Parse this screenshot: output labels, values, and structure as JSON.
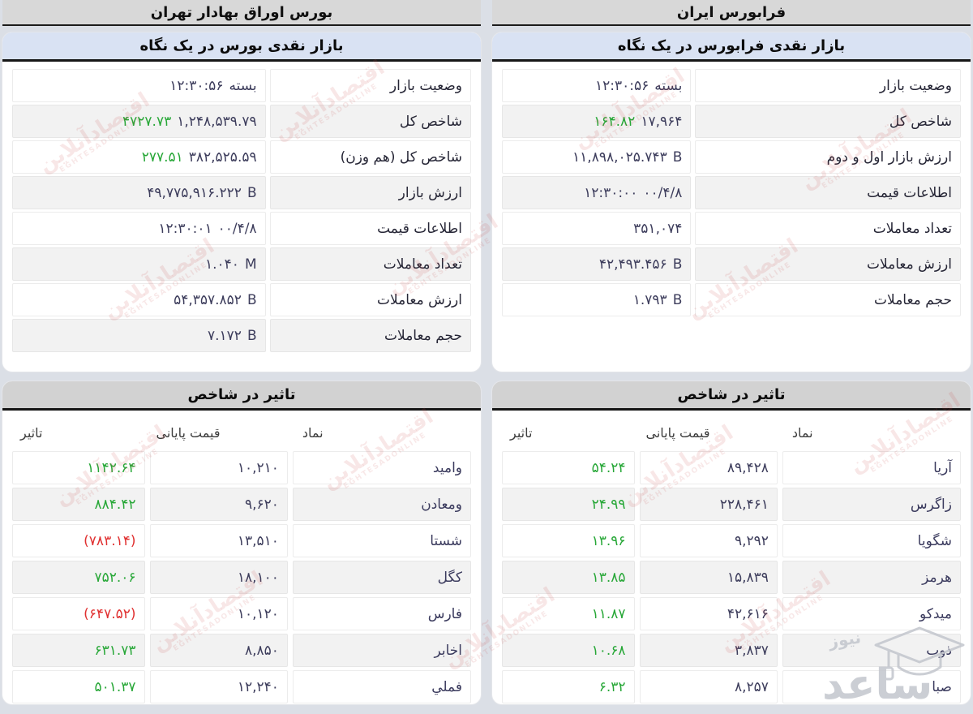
{
  "colors": {
    "up_green": "#27a737",
    "down_red": "#e03131",
    "value_dark": "#3d3d5c"
  },
  "watermark": {
    "site_text": "اقتصادآنلاین",
    "site_subtext": "EGHTESADONLINE",
    "corner_big": "ساعد",
    "corner_small": "نیوز"
  },
  "columns": [
    {
      "header": "بورس اوراق بهادار تهران",
      "glance": {
        "title": "بازار نقدی بورس در یک نگاه",
        "rows": [
          {
            "label": "وضعیت بازار",
            "segments": [
              {
                "text": "۱۲:۳۰:۵۶",
                "tone": "dark"
              },
              {
                "text": "بسته",
                "tone": "dark"
              }
            ]
          },
          {
            "label": "شاخص کل",
            "segments": [
              {
                "text": "۴۷۲۷.۷۳",
                "tone": "green"
              },
              {
                "text": "۱,۲۴۸,۵۳۹.۷۹",
                "tone": "dark"
              }
            ]
          },
          {
            "label": "شاخص کل (هم وزن)",
            "segments": [
              {
                "text": "۲۷۷.۵۱",
                "tone": "green"
              },
              {
                "text": "۳۸۲,۵۲۵.۵۹",
                "tone": "dark"
              }
            ]
          },
          {
            "label": "ارزش بازار",
            "segments": [
              {
                "text": "۴۹,۷۷۵,۹۱۶.۲۲۲",
                "tone": "dark"
              },
              {
                "text": "B",
                "tone": "dark"
              }
            ]
          },
          {
            "label": "اطلاعات قیمت",
            "segments": [
              {
                "text": "۱۲:۳۰:۰۱",
                "tone": "dark"
              },
              {
                "text": "۰۰/۴/۸",
                "tone": "dark"
              }
            ]
          },
          {
            "label": "تعداد معاملات",
            "segments": [
              {
                "text": "۱.۰۴۰",
                "tone": "dark"
              },
              {
                "text": "M",
                "tone": "dark"
              }
            ]
          },
          {
            "label": "ارزش معاملات",
            "segments": [
              {
                "text": "۵۴,۳۵۷.۸۵۲",
                "tone": "dark"
              },
              {
                "text": "B",
                "tone": "dark"
              }
            ]
          },
          {
            "label": "حجم معاملات",
            "segments": [
              {
                "text": "۷.۱۷۲",
                "tone": "dark"
              },
              {
                "text": "B",
                "tone": "dark"
              }
            ]
          }
        ]
      },
      "impact": {
        "title": "تاثیر در شاخص",
        "headers": {
          "symbol": "نماد",
          "close": "قیمت پایانی",
          "impact": "تاثیر"
        },
        "rows": [
          {
            "symbol": "وامید",
            "close": "۱۰,۲۱۰",
            "impact": "۱۱۴۲.۶۴",
            "dir": "up"
          },
          {
            "symbol": "ومعادن",
            "close": "۹,۶۲۰",
            "impact": "۸۸۴.۴۲",
            "dir": "up"
          },
          {
            "symbol": "شستا",
            "close": "۱۳,۵۱۰",
            "impact": "(۷۸۳.۱۴)",
            "dir": "down"
          },
          {
            "symbol": "کگل",
            "close": "۱۸,۱۰۰",
            "impact": "۷۵۲.۰۶",
            "dir": "up"
          },
          {
            "symbol": "فارس",
            "close": "۱۰,۱۲۰",
            "impact": "(۶۴۷.۵۲)",
            "dir": "down"
          },
          {
            "symbol": "اخابر",
            "close": "۸,۸۵۰",
            "impact": "۶۳۱.۷۳",
            "dir": "up"
          },
          {
            "symbol": "فملي",
            "close": "۱۲,۲۴۰",
            "impact": "۵۰۱.۳۷",
            "dir": "up"
          }
        ]
      }
    },
    {
      "header": "فرابورس ایران",
      "glance": {
        "title": "بازار نقدی فرابورس در یک نگاه",
        "rows": [
          {
            "label": "وضعیت بازار",
            "segments": [
              {
                "text": "۱۲:۳۰:۵۶",
                "tone": "dark"
              },
              {
                "text": "بسته",
                "tone": "dark"
              }
            ]
          },
          {
            "label": "شاخص کل",
            "segments": [
              {
                "text": "۱۶۴.۸۲",
                "tone": "green"
              },
              {
                "text": "۱۷,۹۶۴",
                "tone": "dark"
              }
            ]
          },
          {
            "label": "ارزش بازار اول و دوم",
            "segments": [
              {
                "text": "۱۱,۸۹۸,۰۲۵.۷۴۳",
                "tone": "dark"
              },
              {
                "text": "B",
                "tone": "dark"
              }
            ]
          },
          {
            "label": "اطلاعات قیمت",
            "segments": [
              {
                "text": "۱۲:۳۰:۰۰",
                "tone": "dark"
              },
              {
                "text": "۰۰/۴/۸",
                "tone": "dark"
              }
            ]
          },
          {
            "label": "تعداد معاملات",
            "segments": [
              {
                "text": "۳۵۱,۰۷۴",
                "tone": "dark"
              }
            ]
          },
          {
            "label": "ارزش معاملات",
            "segments": [
              {
                "text": "۴۲,۴۹۳.۴۵۶",
                "tone": "dark"
              },
              {
                "text": "B",
                "tone": "dark"
              }
            ]
          },
          {
            "label": "حجم معاملات",
            "segments": [
              {
                "text": "۱.۷۹۳",
                "tone": "dark"
              },
              {
                "text": "B",
                "tone": "dark"
              }
            ]
          }
        ]
      },
      "impact": {
        "title": "تاثیر در شاخص",
        "headers": {
          "symbol": "نماد",
          "close": "قیمت پایانی",
          "impact": "تاثیر"
        },
        "rows": [
          {
            "symbol": "آریا",
            "close": "۸۹,۴۲۸",
            "impact": "۵۴.۲۴",
            "dir": "up"
          },
          {
            "symbol": "زاگرس",
            "close": "۲۲۸,۴۶۱",
            "impact": "۲۴.۹۹",
            "dir": "up"
          },
          {
            "symbol": "شگویا",
            "close": "۹,۲۹۲",
            "impact": "۱۳.۹۶",
            "dir": "up"
          },
          {
            "symbol": "هرمز",
            "close": "۱۵,۸۳۹",
            "impact": "۱۳.۸۵",
            "dir": "up"
          },
          {
            "symbol": "میدکو",
            "close": "۴۲,۶۱۶",
            "impact": "۱۱.۸۷",
            "dir": "up"
          },
          {
            "symbol": "ذوب",
            "close": "۳,۸۳۷",
            "impact": "۱۰.۶۸",
            "dir": "up"
          },
          {
            "symbol": "صبا",
            "close": "۸,۲۵۷",
            "impact": "۶.۳۲",
            "dir": "up"
          }
        ]
      }
    }
  ]
}
